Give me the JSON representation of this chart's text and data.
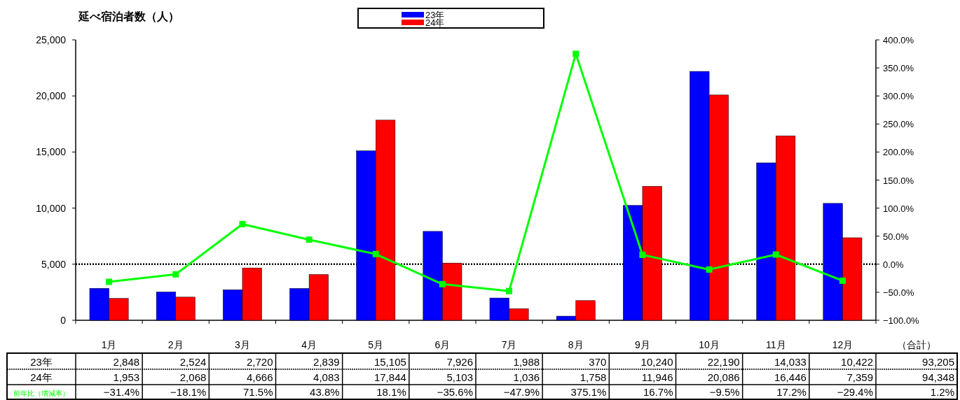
{
  "chart_data": {
    "type": "bar",
    "ylabel": "延べ宿泊者数（人）",
    "categories": [
      "1月",
      "2月",
      "3月",
      "4月",
      "5月",
      "6月",
      "7月",
      "8月",
      "9月",
      "10月",
      "11月",
      "12月"
    ],
    "series": [
      {
        "name": "23年",
        "color": "#0000ff",
        "values": [
          2848,
          2524,
          2720,
          2839,
          15105,
          7926,
          1988,
          370,
          10240,
          22190,
          14033,
          10422
        ],
        "value_labels": [
          "2,848",
          "2,524",
          "2,720",
          "2,839",
          "15,105",
          "7,926",
          "1,988",
          "370",
          "10,240",
          "22,190",
          "14,033",
          "10,422"
        ]
      },
      {
        "name": "24年",
        "color": "#ff0000",
        "values": [
          1953,
          2068,
          4666,
          4083,
          17844,
          5103,
          1036,
          1758,
          11946,
          20086,
          16446,
          7359
        ],
        "value_labels": [
          "1,953",
          "2,068",
          "4,666",
          "4,083",
          "17,844",
          "5,103",
          "1,036",
          "1,758",
          "11,946",
          "20,086",
          "16,446",
          "7,359"
        ]
      },
      {
        "name": "前年比（増減率）",
        "type": "line",
        "axis": "y2",
        "color": "#00ff00",
        "values": [
          -31.4,
          -18.1,
          71.5,
          43.8,
          18.1,
          -35.6,
          -47.9,
          375.1,
          16.7,
          -9.5,
          17.2,
          -29.4
        ],
        "value_labels": [
          "−31.4%",
          "−18.1%",
          "71.5%",
          "43.8%",
          "18.1%",
          "−35.6%",
          "−47.9%",
          "375.1%",
          "16.7%",
          "−9.5%",
          "17.2%",
          "−29.4%"
        ]
      }
    ],
    "ylim": [
      0,
      25000
    ],
    "yticks": [
      0,
      {
        "value": 5000,
        "label": "5,000"
      },
      {
        "value": 10000,
        "label": "10,000"
      },
      {
        "value": 15000,
        "label": "15,000"
      },
      {
        "value": 20000,
        "label": "20,000"
      },
      {
        "value": 25000,
        "label": "25,000"
      }
    ],
    "y2lim": [
      -100,
      400
    ],
    "y2ticks": [
      {
        "value": -100,
        "label": "−100.0%"
      },
      {
        "value": -50,
        "label": "−50.0%"
      },
      {
        "value": 0,
        "label": "0.0%"
      },
      {
        "value": 50,
        "label": "50.0%"
      },
      {
        "value": 100,
        "label": "100.0%"
      },
      {
        "value": 150,
        "label": "150.0%"
      },
      {
        "value": 200,
        "label": "200.0%"
      },
      {
        "value": 250,
        "label": "250.0%"
      },
      {
        "value": 300,
        "label": "300.0%"
      },
      {
        "value": 350,
        "label": "350.0%"
      },
      {
        "value": 400,
        "label": "400.0%"
      }
    ],
    "ref_lines": [
      {
        "axis": "y2",
        "value": 0,
        "color": "#000000",
        "line_style": "dotted"
      }
    ],
    "marker": "square",
    "grid": false,
    "legend": "top",
    "annotations": [
      "（合計）",
      "93,205",
      "94,348",
      "1.2%"
    ]
  }
}
